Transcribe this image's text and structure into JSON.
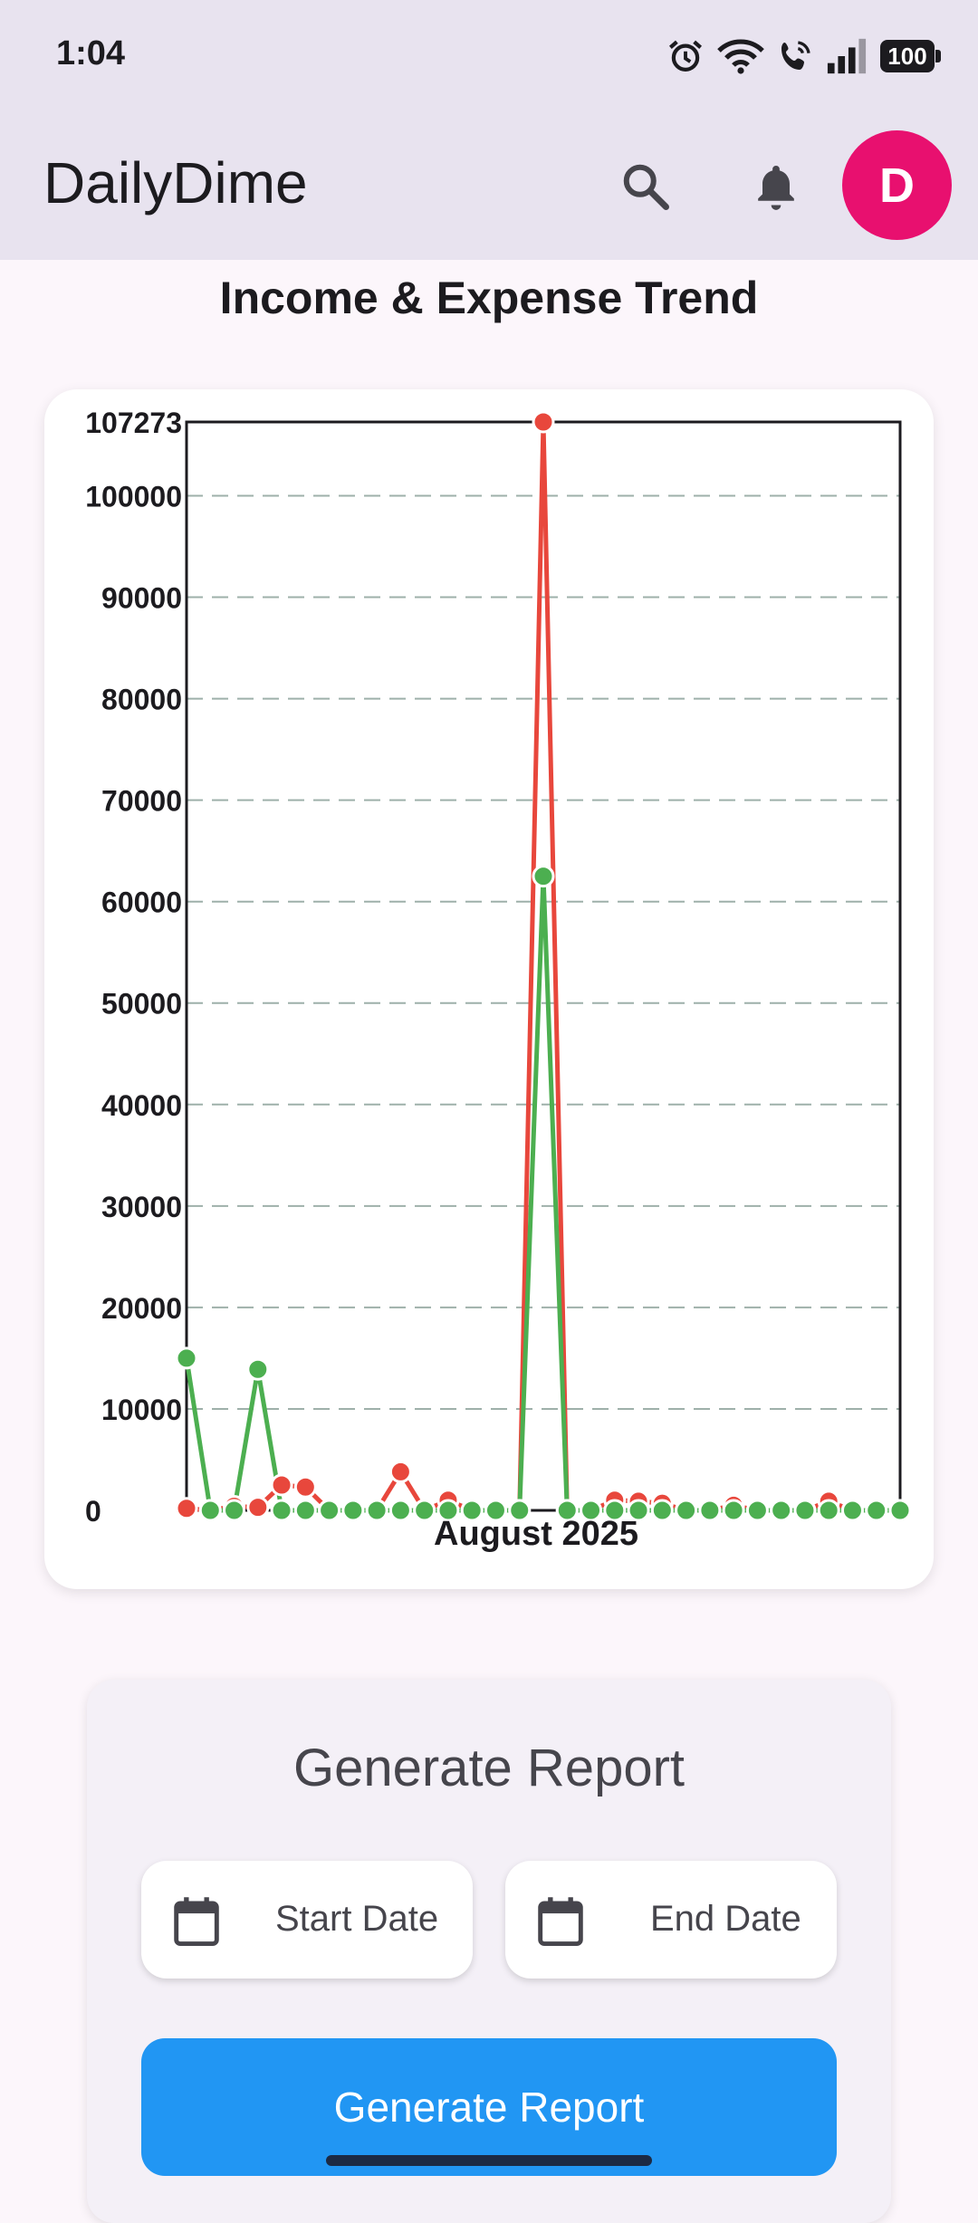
{
  "status_bar": {
    "time": "1:04",
    "battery": "100",
    "icons": [
      "alarm-icon",
      "wifi-icon",
      "wifi-call-icon",
      "signal-icon",
      "battery-icon"
    ]
  },
  "app_bar": {
    "title": "DailyDime",
    "avatar_letter": "D",
    "icons": [
      "search-icon",
      "notification-bell-icon"
    ]
  },
  "chart_heading": "Income & Expense Trend",
  "chart_data": {
    "type": "line",
    "title": "Income & Expense Trend",
    "xlabel": "August 2025",
    "ylabel": "",
    "x": [
      1,
      2,
      3,
      4,
      5,
      6,
      7,
      8,
      9,
      10,
      11,
      12,
      13,
      14,
      15,
      16,
      17,
      18,
      19,
      20,
      21,
      22,
      23,
      24,
      25,
      26,
      27,
      28,
      29,
      30,
      31
    ],
    "ylim": [
      0,
      107273
    ],
    "yticks": [
      "107273",
      "100000",
      "90000",
      "80000",
      "70000",
      "60000",
      "50000",
      "40000",
      "30000",
      "20000",
      "10000",
      "0"
    ],
    "grid": true,
    "series": [
      {
        "color": "#e8473c",
        "values": [
          200,
          0,
          400,
          300,
          2500,
          2300,
          0,
          0,
          0,
          3800,
          0,
          1000,
          0,
          0,
          0,
          107273,
          0,
          0,
          1000,
          900,
          700,
          0,
          0,
          500,
          0,
          0,
          0,
          900,
          0,
          0,
          0
        ]
      },
      {
        "color": "#4caf50",
        "values": [
          15000,
          0,
          0,
          13900,
          0,
          0,
          0,
          0,
          0,
          0,
          0,
          0,
          0,
          0,
          0,
          62500,
          0,
          0,
          0,
          0,
          0,
          0,
          0,
          0,
          0,
          0,
          0,
          0,
          0,
          0,
          0
        ]
      }
    ]
  },
  "report": {
    "title": "Generate Report",
    "start_label": "Start Date",
    "end_label": "End Date",
    "button_label": "Generate Report"
  },
  "colors": {
    "app_bar": "#e8e3ef",
    "avatar": "#e8106f",
    "primary_button": "#2196f3",
    "expense": "#e8473c",
    "income": "#4caf50"
  }
}
